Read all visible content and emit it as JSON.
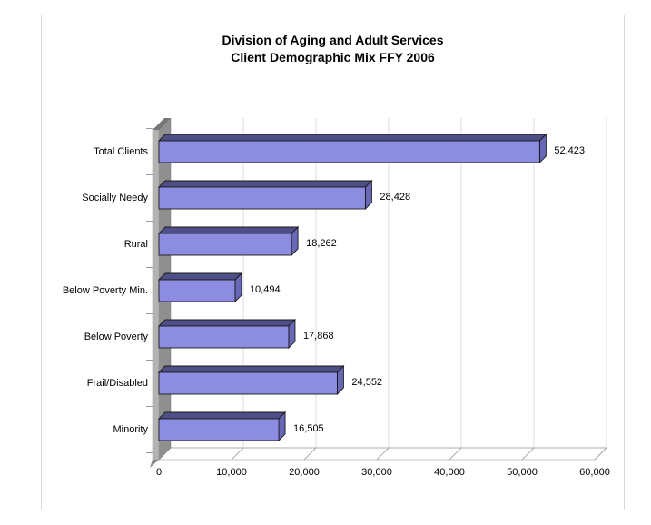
{
  "title": {
    "line1": "Division of Aging and Adult Services",
    "line2": "Client Demographic Mix FFY 2006"
  },
  "chart_data": {
    "type": "bar",
    "orientation": "horizontal",
    "style": "3d-cylinder-free-excel-bar",
    "title": "Division of Aging and Adult Services Client Demographic Mix FFY 2006",
    "categories": [
      "Total Clients",
      "Socially Needy",
      "Rural",
      "Below Poverty Min.",
      "Below Poverty",
      "Frail/Disabled",
      "Minority"
    ],
    "values": [
      52423,
      28428,
      18262,
      10494,
      17868,
      24552,
      16505
    ],
    "value_labels": [
      "52,423",
      "28,428",
      "18,262",
      "10,494",
      "17,868",
      "24,552",
      "16,505"
    ],
    "x_axis": {
      "min": 0,
      "max": 60000,
      "step": 10000,
      "ticks": [
        "0",
        "10,000",
        "20,000",
        "30,000",
        "40,000",
        "50,000",
        "60,000"
      ]
    },
    "gridlines": "vertical",
    "legend": false,
    "colors": {
      "bar_front": "#8c8ce0",
      "bar_top": "#4f4f87",
      "bar_end": "#6868b8",
      "bar_outline": "#1a1a1a",
      "wall_front": "#b3b3b3",
      "wall_side": "#8f8f8f",
      "wall_top": "#767676",
      "wall_tail": "#888888",
      "gridline": "#dcdcdc",
      "floor_line": "#ababab",
      "floor_front_line": "#c4c4c4",
      "category_tick": "#9a9a9a",
      "text": "#000000",
      "frame_border": "#d9d9d9"
    }
  }
}
